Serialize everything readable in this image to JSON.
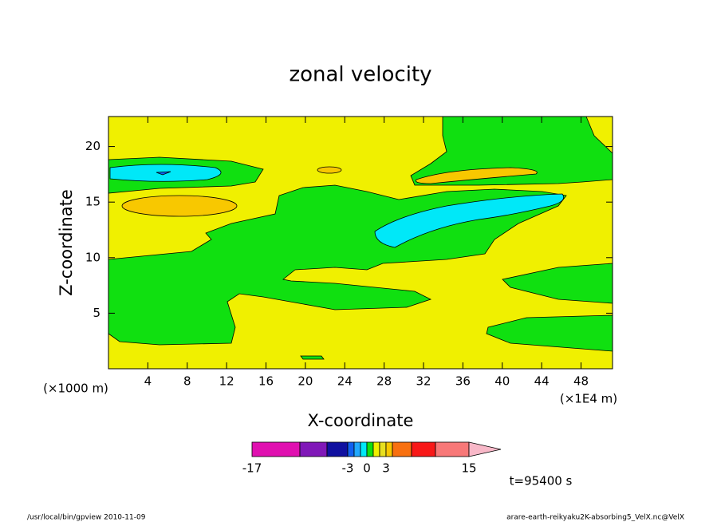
{
  "chart_data": {
    "type": "contour",
    "title": "zonal velocity",
    "xlabel": "X-coordinate",
    "ylabel": "Z-coordinate",
    "x_unit": "(×1E4 m)",
    "y_unit": "(×1000 m)",
    "time_label": "t=95400 s",
    "footer_left": "/usr/local/bin/gpview  2010-11-09",
    "footer_right": "arare-earth-reikyaku2K-absorbing5_VelX.nc@VelX",
    "xlim": [
      0,
      51.2
    ],
    "ylim": [
      0,
      22.7
    ],
    "xticks": [
      4,
      8,
      12,
      16,
      20,
      24,
      28,
      32,
      36,
      40,
      44,
      48
    ],
    "yticks": [
      5,
      10,
      15,
      20
    ],
    "colorbar": {
      "levels": [
        -17,
        null,
        null,
        -3,
        null,
        null,
        0,
        null,
        null,
        3,
        null,
        null,
        null,
        15
      ],
      "colors": [
        "#e010b0",
        "#8018b8",
        "#1010a0",
        "#1060f0",
        "#20a8ff",
        "#00e8f8",
        "#10e010",
        "#f0f000",
        "#e8e020",
        "#f8c800",
        "#f87010",
        "#f81818",
        "#f87878",
        "#f8b8c8"
      ]
    }
  }
}
